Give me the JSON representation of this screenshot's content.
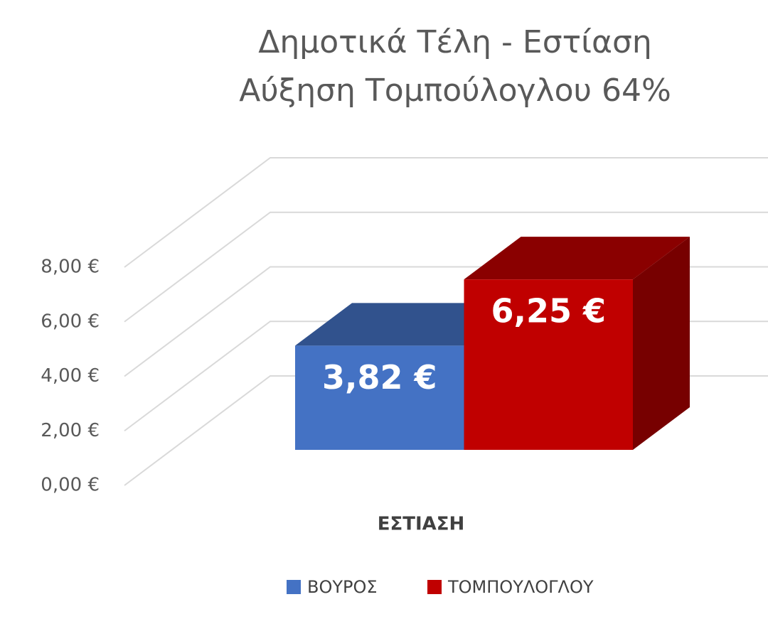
{
  "chart_data": {
    "type": "bar3d",
    "title": "Δημοτικά Τέλη - Εστίαση",
    "subtitle": "Αύξηση Τομπούλογλου 64%",
    "categories": [
      "ΕΣΤΙΑΣΗ"
    ],
    "series": [
      {
        "name": "ΒΟΥΡΟΣ",
        "color": "#4472c4",
        "values": [
          3.82
        ],
        "value_labels": [
          "3,82 €"
        ]
      },
      {
        "name": "ΤΟΜΠΟΥΛΟΓΛΟΥ",
        "color": "#c00000",
        "values": [
          6.25
        ],
        "value_labels": [
          "6,25 €"
        ]
      }
    ],
    "ylim": [
      0,
      8
    ],
    "yticks": [
      {
        "value": 0,
        "label": "0,00 €"
      },
      {
        "value": 2,
        "label": "2,00 €"
      },
      {
        "value": 4,
        "label": "4,00 €"
      },
      {
        "value": 6,
        "label": "6,00 €"
      },
      {
        "value": 8,
        "label": "8,00 €"
      }
    ],
    "grid": true,
    "legend": "bottom"
  }
}
